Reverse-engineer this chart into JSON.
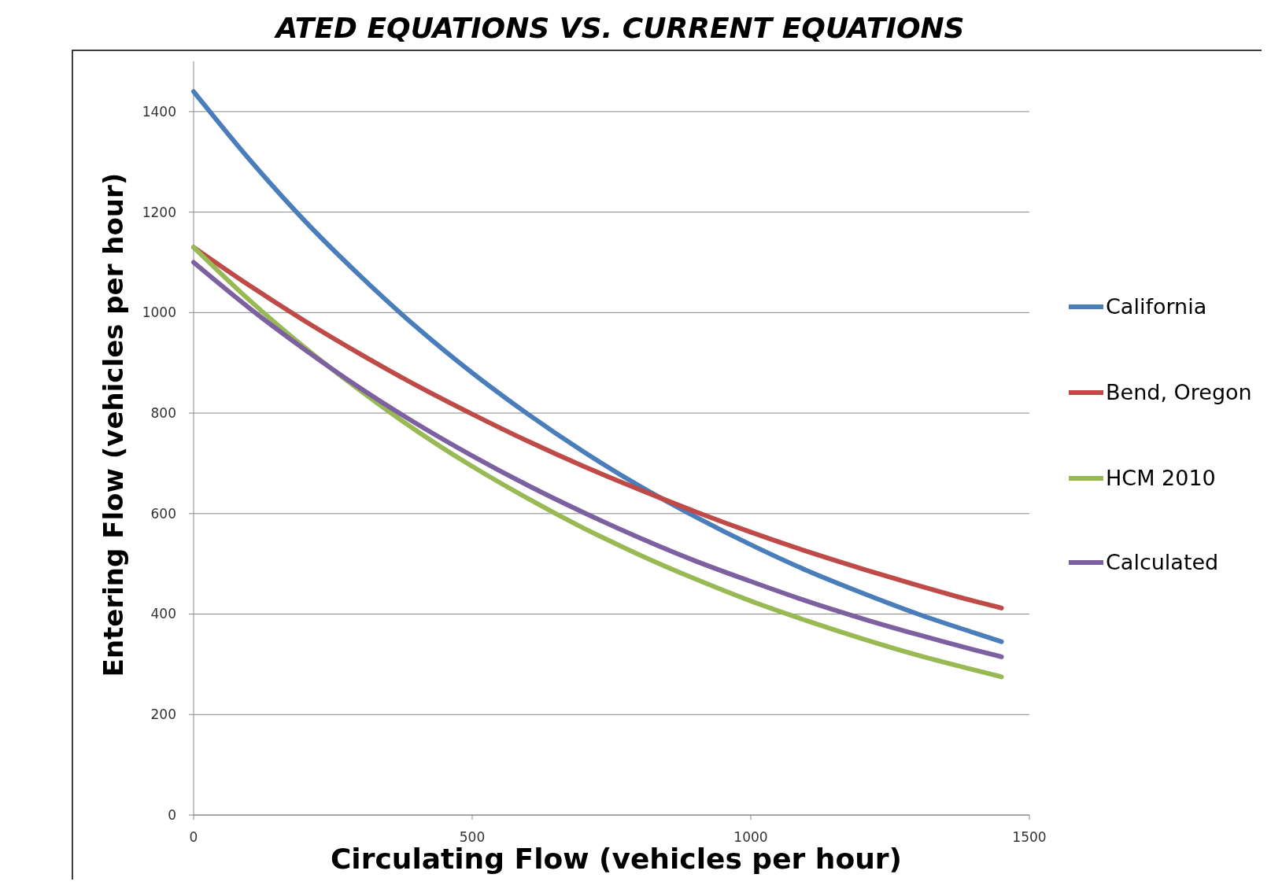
{
  "chart_data": {
    "type": "line",
    "title": "ATED EQUATIONS VS. CURRENT EQUATIONS",
    "xlabel": "Circulating Flow (vehicles per hour)",
    "ylabel": "Entering Flow (vehicles per hour)",
    "x": [
      0,
      100,
      200,
      300,
      400,
      500,
      600,
      700,
      800,
      900,
      1000,
      1100,
      1200,
      1300,
      1400,
      1450
    ],
    "series": [
      {
        "name": "California",
        "color": "#4a7ebb",
        "values": [
          1440,
          1305,
          1182,
          1072,
          971,
          880,
          798,
          723,
          655,
          594,
          538,
          487,
          442,
          400,
          363,
          345
        ]
      },
      {
        "name": "Bend, Oregon",
        "color": "#be4b48",
        "values": [
          1130,
          1054,
          983,
          917,
          855,
          798,
          744,
          694,
          648,
          604,
          563,
          525,
          490,
          457,
          426,
          412
        ]
      },
      {
        "name": "HCM 2010",
        "color": "#98b954",
        "values": [
          1130,
          1025,
          930,
          844,
          765,
          694,
          630,
          571,
          518,
          470,
          426,
          387,
          351,
          318,
          289,
          275
        ]
      },
      {
        "name": "Calculated",
        "color": "#7d60a0",
        "values": [
          1100,
          1009,
          926,
          849,
          779,
          715,
          656,
          602,
          552,
          506,
          465,
          426,
          391,
          359,
          329,
          315
        ]
      }
    ],
    "xlim": [
      0,
      1500
    ],
    "xticks": [
      0,
      500,
      1000,
      1500
    ],
    "ylim": [
      0,
      1500
    ],
    "yticks": [
      0,
      200,
      400,
      600,
      800,
      1000,
      1200,
      1400
    ],
    "grid": "y",
    "legend": "right",
    "marker": "none",
    "line_style": "solid"
  }
}
